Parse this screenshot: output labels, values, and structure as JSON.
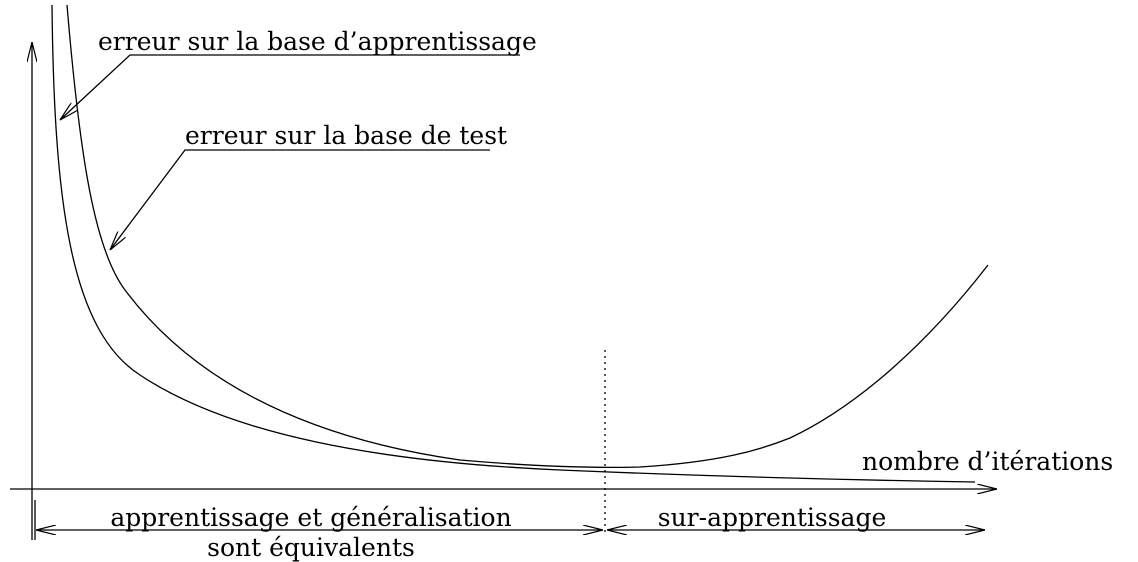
{
  "labels": {
    "train_error": "erreur sur la base d’apprentissage",
    "test_error": "erreur sur la base de test",
    "x_axis": "nombre d’itérations",
    "region_left": [
      "apprentissage et généralisation",
      "sont équivalents"
    ],
    "region_right": "sur-apprentissage"
  }
}
